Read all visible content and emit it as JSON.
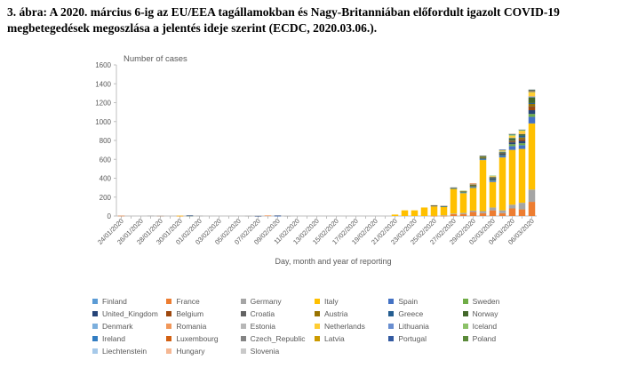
{
  "caption": "3. ábra: A 2020. március 6-ig az EU/EEA tagállamokban és Nagy-Britanniában előfordult igazolt COVID-19 megbetegedések megoszlása a jelentés ideje szerint (ECDC, 2020.03.06.).",
  "chart_data": {
    "type": "bar",
    "stacked": true,
    "ylabel": "Number of cases",
    "xlabel": "Day, month and year of reporting",
    "ylim": [
      0,
      1600
    ],
    "yticks": [
      0,
      200,
      400,
      600,
      800,
      1000,
      1200,
      1400,
      1600
    ],
    "grid": false,
    "legend_position": "bottom",
    "categories": [
      "24/01/2020",
      "25/01/2020",
      "26/01/2020",
      "27/01/2020",
      "28/01/2020",
      "29/01/2020",
      "30/01/2020",
      "31/01/2020",
      "01/02/2020",
      "02/02/2020",
      "03/02/2020",
      "04/02/2020",
      "05/02/2020",
      "06/02/2020",
      "07/02/2020",
      "08/02/2020",
      "09/02/2020",
      "10/02/2020",
      "11/02/2020",
      "12/02/2020",
      "13/02/2020",
      "14/02/2020",
      "15/02/2020",
      "16/02/2020",
      "17/02/2020",
      "18/02/2020",
      "19/02/2020",
      "20/02/2020",
      "21/02/2020",
      "22/02/2020",
      "23/02/2020",
      "24/02/2020",
      "25/02/2020",
      "26/02/2020",
      "27/02/2020",
      "28/02/2020",
      "29/02/2020",
      "01/03/2020",
      "02/03/2020",
      "03/03/2020",
      "04/03/2020",
      "05/03/2020",
      "06/03/2020"
    ],
    "x_tick_labels": [
      "24/01/2020",
      "26/01/2020",
      "28/01/2020",
      "30/01/2020",
      "01/02/2020",
      "03/02/2020",
      "05/02/2020",
      "07/02/2020",
      "09/02/2020",
      "11/02/2020",
      "13/02/2020",
      "15/02/2020",
      "17/02/2020",
      "19/02/2020",
      "21/02/2020",
      "23/02/2020",
      "25/02/2020",
      "27/02/2020",
      "29/02/2020",
      "02/03/2020",
      "04/03/2020",
      "06/03/2020"
    ],
    "series": [
      {
        "name": "Finland",
        "color": "#5b9bd5",
        "values": [
          0,
          0,
          0,
          0,
          0,
          0,
          0,
          0,
          0,
          0,
          0,
          0,
          0,
          0,
          0,
          0,
          0,
          0,
          0,
          0,
          0,
          0,
          0,
          0,
          0,
          0,
          0,
          0,
          0,
          0,
          0,
          0,
          0,
          0,
          0,
          0,
          0,
          0,
          0,
          0,
          0,
          0,
          0
        ]
      },
      {
        "name": "France",
        "color": "#ed7d31",
        "values": [
          3,
          0,
          0,
          0,
          1,
          0,
          1,
          1,
          0,
          0,
          0,
          0,
          0,
          0,
          0,
          5,
          0,
          0,
          0,
          0,
          0,
          0,
          0,
          0,
          0,
          0,
          0,
          0,
          0,
          0,
          0,
          0,
          2,
          2,
          20,
          20,
          43,
          30,
          60,
          30,
          80,
          70,
          150
        ]
      },
      {
        "name": "Germany",
        "color": "#a5a5a5",
        "values": [
          0,
          0,
          0,
          4,
          1,
          0,
          0,
          1,
          3,
          0,
          0,
          0,
          0,
          2,
          0,
          0,
          0,
          1,
          0,
          0,
          0,
          0,
          0,
          0,
          0,
          0,
          0,
          0,
          0,
          0,
          0,
          0,
          0,
          5,
          6,
          12,
          14,
          22,
          30,
          30,
          40,
          70,
          130
        ]
      },
      {
        "name": "Italy",
        "color": "#ffc000",
        "values": [
          0,
          0,
          0,
          0,
          0,
          0,
          2,
          0,
          0,
          0,
          0,
          0,
          0,
          0,
          0,
          0,
          0,
          0,
          0,
          0,
          0,
          0,
          0,
          0,
          0,
          0,
          0,
          0,
          15,
          60,
          60,
          90,
          100,
          90,
          260,
          210,
          240,
          540,
          270,
          560,
          580,
          570,
          700
        ]
      },
      {
        "name": "Spain",
        "color": "#4472c4",
        "values": [
          0,
          0,
          0,
          0,
          0,
          0,
          0,
          1,
          0,
          0,
          0,
          0,
          0,
          0,
          0,
          0,
          1,
          0,
          0,
          0,
          0,
          0,
          0,
          0,
          0,
          0,
          0,
          0,
          0,
          0,
          0,
          0,
          5,
          3,
          6,
          8,
          10,
          10,
          15,
          20,
          40,
          40,
          70
        ]
      },
      {
        "name": "Sweden",
        "color": "#70ad47",
        "values": [
          0,
          0,
          0,
          0,
          0,
          0,
          0,
          1,
          0,
          0,
          0,
          0,
          0,
          0,
          0,
          0,
          0,
          0,
          0,
          0,
          0,
          0,
          0,
          0,
          0,
          0,
          0,
          0,
          0,
          0,
          0,
          0,
          0,
          1,
          1,
          5,
          5,
          4,
          5,
          4,
          20,
          20,
          30
        ]
      },
      {
        "name": "United_Kingdom",
        "color": "#264478",
        "values": [
          0,
          0,
          0,
          0,
          0,
          0,
          0,
          2,
          0,
          0,
          0,
          0,
          0,
          0,
          1,
          0,
          4,
          0,
          0,
          0,
          0,
          0,
          0,
          0,
          0,
          0,
          0,
          0,
          0,
          0,
          0,
          0,
          4,
          2,
          3,
          6,
          7,
          10,
          15,
          15,
          20,
          25,
          40
        ]
      },
      {
        "name": "Belgium",
        "color": "#9e480e",
        "values": [
          0,
          0,
          0,
          0,
          0,
          0,
          0,
          0,
          0,
          0,
          0,
          0,
          0,
          0,
          0,
          0,
          0,
          0,
          0,
          0,
          0,
          0,
          0,
          0,
          0,
          0,
          0,
          0,
          0,
          0,
          0,
          0,
          0,
          0,
          0,
          1,
          0,
          0,
          0,
          3,
          10,
          20,
          40
        ]
      },
      {
        "name": "Croatia",
        "color": "#636363",
        "values": [
          0,
          0,
          0,
          0,
          0,
          0,
          0,
          0,
          0,
          0,
          0,
          0,
          0,
          0,
          0,
          0,
          0,
          0,
          0,
          0,
          0,
          0,
          0,
          0,
          0,
          0,
          0,
          0,
          0,
          0,
          0,
          0,
          1,
          2,
          0,
          1,
          1,
          1,
          2,
          1,
          2,
          1,
          1
        ]
      },
      {
        "name": "Austria",
        "color": "#997300",
        "values": [
          0,
          0,
          0,
          0,
          0,
          0,
          0,
          0,
          0,
          0,
          0,
          0,
          0,
          0,
          0,
          0,
          0,
          0,
          0,
          0,
          0,
          0,
          0,
          0,
          0,
          0,
          0,
          0,
          0,
          0,
          0,
          0,
          2,
          0,
          3,
          0,
          5,
          4,
          5,
          7,
          10,
          15,
          25
        ]
      },
      {
        "name": "Greece",
        "color": "#255e91",
        "values": [
          0,
          0,
          0,
          0,
          0,
          0,
          0,
          0,
          0,
          0,
          0,
          0,
          0,
          0,
          0,
          0,
          0,
          0,
          0,
          0,
          0,
          0,
          0,
          0,
          0,
          0,
          0,
          0,
          0,
          0,
          0,
          0,
          0,
          1,
          2,
          1,
          0,
          0,
          2,
          2,
          2,
          20,
          10
        ]
      },
      {
        "name": "Norway",
        "color": "#43682b",
        "values": [
          0,
          0,
          0,
          0,
          0,
          0,
          0,
          0,
          0,
          0,
          0,
          0,
          0,
          0,
          0,
          0,
          0,
          0,
          0,
          0,
          0,
          0,
          0,
          0,
          0,
          0,
          0,
          0,
          0,
          0,
          0,
          0,
          0,
          1,
          0,
          1,
          10,
          5,
          10,
          5,
          20,
          15,
          60
        ]
      },
      {
        "name": "Denmark",
        "color": "#7cafdd",
        "values": [
          0,
          0,
          0,
          0,
          0,
          0,
          0,
          0,
          0,
          0,
          0,
          0,
          0,
          0,
          0,
          0,
          0,
          0,
          0,
          0,
          0,
          0,
          0,
          0,
          0,
          0,
          0,
          0,
          0,
          0,
          0,
          0,
          0,
          1,
          0,
          0,
          1,
          0,
          2,
          5,
          5,
          5,
          9
        ]
      },
      {
        "name": "Romania",
        "color": "#f1975a",
        "values": [
          0,
          0,
          0,
          0,
          0,
          0,
          0,
          0,
          0,
          0,
          0,
          0,
          0,
          0,
          0,
          0,
          0,
          0,
          0,
          0,
          0,
          0,
          0,
          0,
          0,
          0,
          0,
          0,
          0,
          0,
          0,
          0,
          0,
          1,
          0,
          0,
          1,
          0,
          1,
          0,
          0,
          1,
          2
        ]
      },
      {
        "name": "Estonia",
        "color": "#b7b7b7",
        "values": [
          0,
          0,
          0,
          0,
          0,
          0,
          0,
          0,
          0,
          0,
          0,
          0,
          0,
          0,
          0,
          0,
          0,
          0,
          0,
          0,
          0,
          0,
          0,
          0,
          0,
          0,
          0,
          0,
          0,
          0,
          0,
          0,
          0,
          1,
          0,
          0,
          0,
          0,
          0,
          0,
          1,
          0,
          3
        ]
      },
      {
        "name": "Netherlands",
        "color": "#ffcd33",
        "values": [
          0,
          0,
          0,
          0,
          0,
          0,
          0,
          0,
          0,
          0,
          0,
          0,
          0,
          0,
          0,
          0,
          0,
          0,
          0,
          0,
          0,
          0,
          0,
          0,
          0,
          0,
          0,
          0,
          0,
          0,
          0,
          0,
          0,
          0,
          1,
          1,
          5,
          5,
          5,
          15,
          20,
          30,
          40
        ]
      },
      {
        "name": "Lithuania",
        "color": "#698ed0",
        "values": [
          0,
          0,
          0,
          0,
          0,
          0,
          0,
          0,
          0,
          0,
          0,
          0,
          0,
          0,
          0,
          0,
          0,
          0,
          0,
          0,
          0,
          0,
          0,
          0,
          0,
          0,
          0,
          0,
          0,
          0,
          0,
          0,
          0,
          0,
          1,
          0,
          0,
          0,
          0,
          0,
          0,
          0,
          0
        ]
      },
      {
        "name": "Iceland",
        "color": "#8cc168",
        "values": [
          0,
          0,
          0,
          0,
          0,
          0,
          0,
          0,
          0,
          0,
          0,
          0,
          0,
          0,
          0,
          0,
          0,
          0,
          0,
          0,
          0,
          0,
          0,
          0,
          0,
          0,
          0,
          0,
          0,
          0,
          0,
          0,
          0,
          0,
          0,
          1,
          0,
          2,
          6,
          2,
          15,
          10,
          10
        ]
      },
      {
        "name": "Ireland",
        "color": "#327dc2",
        "values": [
          0,
          0,
          0,
          0,
          0,
          0,
          0,
          0,
          0,
          0,
          0,
          0,
          0,
          0,
          0,
          0,
          0,
          0,
          0,
          0,
          0,
          0,
          0,
          0,
          0,
          0,
          0,
          0,
          0,
          0,
          0,
          0,
          0,
          0,
          0,
          0,
          1,
          0,
          0,
          0,
          1,
          3,
          1
        ]
      },
      {
        "name": "Luxembourg",
        "color": "#d26012",
        "values": [
          0,
          0,
          0,
          0,
          0,
          0,
          0,
          0,
          0,
          0,
          0,
          0,
          0,
          0,
          0,
          0,
          0,
          0,
          0,
          0,
          0,
          0,
          0,
          0,
          0,
          0,
          0,
          0,
          0,
          0,
          0,
          0,
          0,
          0,
          0,
          0,
          1,
          0,
          0,
          0,
          0,
          0,
          1
        ]
      },
      {
        "name": "Czech_Republic",
        "color": "#848484",
        "values": [
          0,
          0,
          0,
          0,
          0,
          0,
          0,
          0,
          0,
          0,
          0,
          0,
          0,
          0,
          0,
          0,
          0,
          0,
          0,
          0,
          0,
          0,
          0,
          0,
          0,
          0,
          0,
          0,
          0,
          0,
          0,
          0,
          0,
          0,
          0,
          0,
          0,
          3,
          0,
          2,
          0,
          0,
          7
        ]
      },
      {
        "name": "Latvia",
        "color": "#cc9a00",
        "values": [
          0,
          0,
          0,
          0,
          0,
          0,
          0,
          0,
          0,
          0,
          0,
          0,
          0,
          0,
          0,
          0,
          0,
          0,
          0,
          0,
          0,
          0,
          0,
          0,
          0,
          0,
          0,
          0,
          0,
          0,
          0,
          0,
          0,
          0,
          0,
          0,
          0,
          1,
          0,
          0,
          0,
          0,
          0
        ]
      },
      {
        "name": "Portugal",
        "color": "#335aa1",
        "values": [
          0,
          0,
          0,
          0,
          0,
          0,
          0,
          0,
          0,
          0,
          0,
          0,
          0,
          0,
          0,
          0,
          0,
          0,
          0,
          0,
          0,
          0,
          0,
          0,
          0,
          0,
          0,
          0,
          0,
          0,
          0,
          0,
          0,
          0,
          0,
          0,
          0,
          2,
          0,
          2,
          3,
          2,
          4
        ]
      },
      {
        "name": "Poland",
        "color": "#5a8a39",
        "values": [
          0,
          0,
          0,
          0,
          0,
          0,
          0,
          0,
          0,
          0,
          0,
          0,
          0,
          0,
          0,
          0,
          0,
          0,
          0,
          0,
          0,
          0,
          0,
          0,
          0,
          0,
          0,
          0,
          0,
          0,
          0,
          0,
          0,
          0,
          0,
          0,
          0,
          0,
          0,
          0,
          1,
          0,
          4
        ]
      },
      {
        "name": "Liechtenstein",
        "color": "#a6c9e9",
        "values": [
          0,
          0,
          0,
          0,
          0,
          0,
          0,
          0,
          0,
          0,
          0,
          0,
          0,
          0,
          0,
          0,
          0,
          0,
          0,
          0,
          0,
          0,
          0,
          0,
          0,
          0,
          0,
          0,
          0,
          0,
          0,
          0,
          0,
          0,
          0,
          0,
          0,
          0,
          0,
          0,
          0,
          0,
          0
        ]
      },
      {
        "name": "Hungary",
        "color": "#f5b793",
        "values": [
          0,
          0,
          0,
          0,
          0,
          0,
          0,
          0,
          0,
          0,
          0,
          0,
          0,
          0,
          0,
          0,
          0,
          0,
          0,
          0,
          0,
          0,
          0,
          0,
          0,
          0,
          0,
          0,
          0,
          0,
          0,
          0,
          0,
          0,
          0,
          0,
          0,
          0,
          0,
          0,
          2,
          0,
          0
        ]
      },
      {
        "name": "Slovenia",
        "color": "#c9c9c9",
        "values": [
          0,
          0,
          0,
          0,
          0,
          0,
          0,
          0,
          0,
          0,
          0,
          0,
          0,
          0,
          0,
          0,
          0,
          0,
          0,
          0,
          0,
          0,
          0,
          0,
          0,
          0,
          0,
          0,
          0,
          0,
          0,
          0,
          0,
          0,
          0,
          0,
          0,
          0,
          0,
          0,
          1,
          1,
          5
        ]
      }
    ]
  }
}
